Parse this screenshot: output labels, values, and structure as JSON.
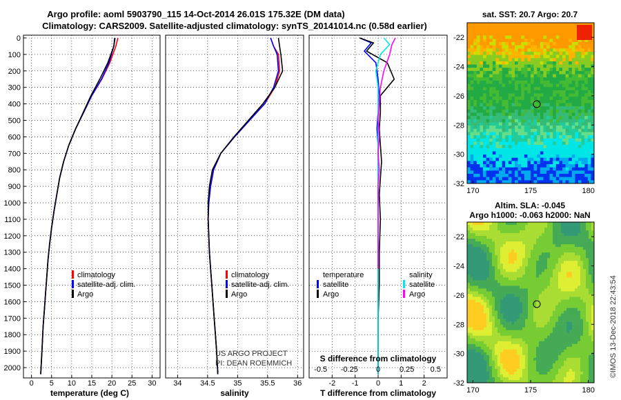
{
  "header": {
    "line1": "Argo profile: aoml 5903790_115 14-Oct-2014 26.01S 175.32E (DM data)",
    "line2": "Climatology: CARS2009. Satellite-adjusted climatology: synTS_20141014.nc (0.58d earlier)"
  },
  "colors": {
    "climatology": "#ff0000",
    "satellite": "#0000ff",
    "argo": "#000000",
    "sal_satellite": "#00e5e5",
    "sal_argo": "#ff00ff"
  },
  "depth_ticks": [
    "0",
    "100",
    "200",
    "300",
    "400",
    "500",
    "600",
    "700",
    "800",
    "900",
    "1000",
    "1100",
    "1200",
    "1300",
    "1400",
    "1500",
    "1600",
    "1700",
    "1800",
    "1900",
    "2000"
  ],
  "panels": {
    "temperature": {
      "xlabel": "temperature (deg C)",
      "xticks": [
        "0",
        "5",
        "10",
        "15",
        "20",
        "25",
        "30"
      ],
      "legend": [
        "climatology",
        "satellite-adj. clim.",
        "Argo"
      ]
    },
    "salinity": {
      "xlabel": "salinity",
      "xticks": [
        "34",
        "34.5",
        "35",
        "35.5",
        "36"
      ],
      "legend": [
        "climatology",
        "satellite-adj. clim.",
        "Argo"
      ],
      "credit1": "US ARGO PROJECT",
      "credit2": "PI: DEAN ROEMMICH"
    },
    "difference": {
      "xlabel": "T difference from climatology",
      "xlabel2": "S difference from climatology",
      "xticks": [
        "-2",
        "-1",
        "0",
        "1",
        "2"
      ],
      "sticks": [
        "-0.5",
        "-0.25",
        "0",
        "0.25",
        "0.5"
      ],
      "leg_temp_head": "temperature",
      "leg_sal_head": "salinity",
      "leg_items": [
        "satellite",
        "Argo"
      ]
    }
  },
  "maps": {
    "sst": {
      "title": "sat. SST: 20.7 Argo: 20.7",
      "yticks": [
        "-22",
        "-24",
        "-26",
        "-28",
        "-30",
        "-32"
      ],
      "xticks": [
        "170",
        "175",
        "180"
      ]
    },
    "sla": {
      "title1": "Altim. SLA: -0.045",
      "title2": "Argo h1000: -0.063 h2000: NaN",
      "yticks": [
        "-22",
        "-24",
        "-26",
        "-28",
        "-30",
        "-32"
      ],
      "xticks": [
        "170",
        "175",
        "180"
      ]
    }
  },
  "footer": "©IMOS 13-Dec-2018 22:43:54",
  "chart_data": [
    {
      "type": "line",
      "title": "",
      "xlabel": "temperature (deg C)",
      "ylabel": "",
      "xlim": [
        -2,
        32
      ],
      "ylim": [
        2050,
        0
      ],
      "grid": true,
      "legend_placement": "lower-center",
      "series": [
        {
          "name": "climatology",
          "x": [
            21.5,
            21.0,
            19.5,
            17.5,
            15.0,
            13.0,
            11.0,
            9.3,
            8.0,
            7.0,
            6.3,
            5.6,
            5.0,
            4.5,
            4.1,
            3.8,
            3.5,
            3.2,
            2.9,
            2.6,
            2.3
          ],
          "y": [
            0,
            50,
            150,
            250,
            350,
            450,
            550,
            650,
            750,
            850,
            950,
            1050,
            1150,
            1250,
            1350,
            1450,
            1550,
            1650,
            1750,
            1900,
            2040
          ]
        },
        {
          "name": "satellite-adj. clim.",
          "x": [
            20.8,
            20.5,
            19.3,
            17.4,
            15.0,
            13.0,
            11.0,
            9.3,
            8.0,
            7.0,
            6.3,
            5.6,
            5.0,
            4.5,
            4.1,
            3.8,
            3.5,
            3.2,
            2.9,
            2.6,
            2.3
          ],
          "y": [
            0,
            50,
            150,
            250,
            350,
            450,
            550,
            650,
            750,
            850,
            950,
            1050,
            1150,
            1250,
            1350,
            1450,
            1550,
            1650,
            1750,
            1900,
            2040
          ]
        },
        {
          "name": "Argo",
          "x": [
            20.7,
            20.5,
            19.0,
            17.0,
            14.8,
            12.9,
            11.0,
            9.3,
            8.0,
            7.0,
            6.3,
            5.6,
            5.0,
            4.5,
            4.1,
            3.8,
            3.5,
            3.2,
            2.9,
            2.6,
            2.3
          ],
          "y": [
            0,
            50,
            150,
            250,
            350,
            450,
            550,
            650,
            750,
            850,
            950,
            1050,
            1150,
            1250,
            1350,
            1450,
            1550,
            1650,
            1750,
            1900,
            2040
          ]
        }
      ]
    },
    {
      "type": "line",
      "title": "",
      "xlabel": "salinity",
      "ylabel": "",
      "xlim": [
        33.8,
        36.1
      ],
      "ylim": [
        2050,
        0
      ],
      "grid": true,
      "legend_placement": "lower-center",
      "series": [
        {
          "name": "climatology",
          "x": [
            35.55,
            35.6,
            35.68,
            35.7,
            35.62,
            35.45,
            35.2,
            34.95,
            34.72,
            34.6,
            34.55,
            34.52,
            34.51,
            34.52,
            34.53,
            34.55,
            34.57,
            34.59,
            34.61,
            34.63,
            34.65,
            34.67
          ],
          "y": [
            0,
            50,
            100,
            200,
            300,
            400,
            500,
            600,
            700,
            800,
            900,
            1000,
            1100,
            1200,
            1300,
            1400,
            1500,
            1600,
            1700,
            1800,
            1900,
            2040
          ]
        },
        {
          "name": "satellite-adj. clim.",
          "x": [
            35.55,
            35.6,
            35.66,
            35.68,
            35.6,
            35.45,
            35.2,
            34.95,
            34.72,
            34.6,
            34.55,
            34.52,
            34.51,
            34.52,
            34.53,
            34.55,
            34.57,
            34.59,
            34.61,
            34.63,
            34.65,
            34.67
          ],
          "y": [
            0,
            50,
            100,
            200,
            300,
            400,
            500,
            600,
            700,
            800,
            900,
            1000,
            1100,
            1200,
            1300,
            1400,
            1500,
            1600,
            1700,
            1800,
            1900,
            2040
          ]
        },
        {
          "name": "Argo",
          "x": [
            35.68,
            35.7,
            35.72,
            35.75,
            35.62,
            35.42,
            35.18,
            34.94,
            34.72,
            34.58,
            34.53,
            34.51,
            34.51,
            34.52,
            34.53,
            34.55,
            34.57,
            34.59,
            34.61,
            34.63,
            34.65,
            34.67
          ],
          "y": [
            0,
            50,
            100,
            200,
            300,
            400,
            500,
            600,
            700,
            800,
            900,
            1000,
            1100,
            1200,
            1300,
            1400,
            1500,
            1600,
            1700,
            1800,
            1900,
            2040
          ]
        }
      ]
    },
    {
      "type": "line",
      "title": "",
      "xlabel": "T difference from climatology",
      "ylabel": "",
      "xlim": [
        -3,
        3
      ],
      "ylim": [
        2050,
        0
      ],
      "grid": true,
      "legend_placement": "lower-center",
      "series": [
        {
          "name": "temperature satellite",
          "x": [
            -0.8,
            -0.3,
            -0.6,
            -0.1,
            0.0,
            0.05,
            0.0,
            -0.05,
            0.0,
            0.0,
            0.0,
            0.0,
            0.0,
            0.0,
            0.0,
            0.0,
            0.0,
            0.0
          ],
          "y": [
            0,
            30,
            80,
            150,
            250,
            350,
            450,
            550,
            650,
            750,
            850,
            950,
            1100,
            1300,
            1500,
            1700,
            1900,
            2040
          ]
        },
        {
          "name": "temperature Argo",
          "x": [
            -0.8,
            -0.2,
            -0.5,
            0.4,
            0.7,
            0.1,
            0.1,
            0.05,
            0.1,
            0.15,
            0.1,
            0.05,
            0.1,
            0.05,
            0.05,
            0.0,
            0.0,
            0.0
          ],
          "y": [
            0,
            30,
            80,
            150,
            250,
            350,
            450,
            550,
            650,
            750,
            850,
            950,
            1100,
            1300,
            1500,
            1700,
            1900,
            2040
          ]
        },
        {
          "name": "salinity satellite",
          "x": [
            0.05,
            0.1,
            0.02,
            -0.02,
            0.0,
            0.0,
            0.0,
            0.0,
            0.0,
            0.0,
            0.0,
            0.0,
            0.0,
            0.0,
            0.0,
            0.0
          ],
          "y": [
            0,
            40,
            100,
            200,
            300,
            400,
            500,
            600,
            700,
            800,
            1000,
            1200,
            1400,
            1600,
            1800,
            2040
          ]
        },
        {
          "name": "salinity Argo",
          "x": [
            0.15,
            0.12,
            0.1,
            0.05,
            0.02,
            0.01,
            0.0,
            0.01,
            0.0,
            0.01,
            0.0,
            0.0,
            0.0,
            0.0
          ],
          "y": [
            0,
            40,
            100,
            200,
            300,
            400,
            500,
            600,
            700,
            800,
            900,
            1000,
            1200,
            1400
          ]
        }
      ]
    }
  ]
}
